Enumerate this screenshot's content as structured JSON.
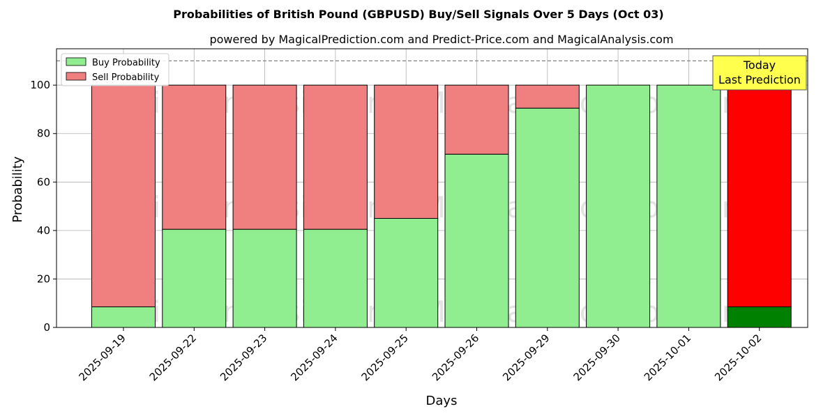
{
  "chart_data": {
    "type": "bar",
    "title": "Probabilities of British Pound (GBPUSD) Buy/Sell Signals Over 5 Days (Oct 03)",
    "subtitle": "powered by MagicalPrediction.com and Predict-Price.com and MagicalAnalysis.com",
    "xlabel": "Days",
    "ylabel": "Probability",
    "ylim": [
      0,
      115
    ],
    "yticks": [
      "0",
      "20",
      "40",
      "60",
      "80",
      "100"
    ],
    "grid": true,
    "stacked": true,
    "legend_position": "top-left",
    "categories": [
      "2025-09-19",
      "2025-09-22",
      "2025-09-23",
      "2025-09-24",
      "2025-09-25",
      "2025-09-26",
      "2025-09-29",
      "2025-09-30",
      "2025-10-01",
      "2025-10-02"
    ],
    "series": [
      {
        "name": "Buy Probability",
        "color": "#90ee90",
        "values": [
          8.5,
          40.5,
          40.5,
          40.5,
          45,
          71.5,
          90.5,
          100,
          100,
          8.5
        ]
      },
      {
        "name": "Sell Probability",
        "color": "#f08080",
        "values": [
          91.5,
          59.5,
          59.5,
          59.5,
          55,
          28.5,
          9.5,
          0,
          0,
          91.5
        ]
      }
    ],
    "highlight": {
      "index": 9,
      "buy_color": "#008000",
      "sell_color": "#ff0000"
    },
    "reference_line": {
      "y": 110,
      "style": "dashed",
      "color": "#808080"
    },
    "annotation": {
      "lines": [
        "Today",
        "Last Prediction"
      ],
      "box_color": "#ffff4d"
    },
    "watermarks": [
      "MagicalAnalysis.com",
      "MagicalPrediction.com",
      "MagicalAnalysis.com",
      "MagicalPrediction.com",
      "MagicalAnalysis.com",
      "MagicalPrediction.com"
    ]
  }
}
